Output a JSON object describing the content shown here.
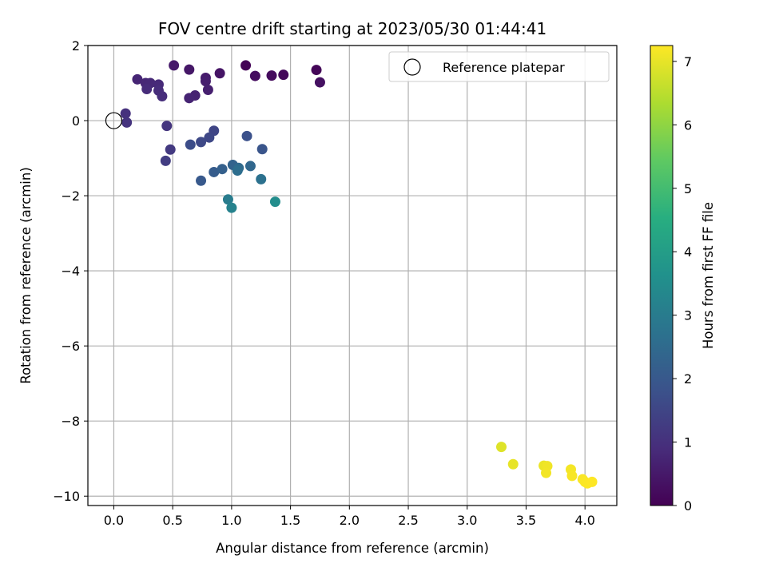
{
  "chart_data": {
    "type": "scatter",
    "title": "FOV centre drift starting at 2023/05/30 01:44:41",
    "xlabel": "Angular distance from reference (arcmin)",
    "ylabel": "Rotation from reference (arcmin)",
    "xlim": [
      -0.22,
      4.27
    ],
    "ylim": [
      -10.25,
      2.0
    ],
    "x_ticks": [
      0.0,
      0.5,
      1.0,
      1.5,
      2.0,
      2.5,
      3.0,
      3.5,
      4.0
    ],
    "x_tick_labels": [
      "0.0",
      "0.5",
      "1.0",
      "1.5",
      "2.0",
      "2.5",
      "3.0",
      "3.5",
      "4.0"
    ],
    "y_ticks": [
      2,
      0,
      -2,
      -4,
      -6,
      -8,
      -10
    ],
    "y_tick_labels": [
      "2",
      "0",
      "−2",
      "−4",
      "−6",
      "−8",
      "−10"
    ],
    "grid": true,
    "legend": {
      "placement": "top-right",
      "entries": [
        "Reference platepar"
      ]
    },
    "reference_point": {
      "x": 0.0,
      "y": 0.0
    },
    "colorbar": {
      "label": "Hours from first FF file",
      "colormap": "viridis",
      "range": [
        0,
        7.25
      ],
      "ticks": [
        0,
        1,
        2,
        3,
        4,
        5,
        6,
        7
      ],
      "tick_labels": [
        "0",
        "1",
        "2",
        "3",
        "4",
        "5",
        "6",
        "7"
      ]
    },
    "points": [
      {
        "x": 1.12,
        "y": 1.47,
        "c": 0.05
      },
      {
        "x": 1.72,
        "y": 1.35,
        "c": 0.1
      },
      {
        "x": 1.44,
        "y": 1.22,
        "c": 0.15
      },
      {
        "x": 1.34,
        "y": 1.2,
        "c": 0.2
      },
      {
        "x": 1.2,
        "y": 1.19,
        "c": 0.25
      },
      {
        "x": 1.75,
        "y": 1.02,
        "c": 0.3
      },
      {
        "x": 0.9,
        "y": 1.26,
        "c": 0.4
      },
      {
        "x": 0.64,
        "y": 1.36,
        "c": 0.45
      },
      {
        "x": 0.51,
        "y": 1.47,
        "c": 0.5
      },
      {
        "x": 0.78,
        "y": 1.14,
        "c": 0.55
      },
      {
        "x": 0.78,
        "y": 1.05,
        "c": 0.6
      },
      {
        "x": 0.8,
        "y": 0.82,
        "c": 0.62
      },
      {
        "x": 0.69,
        "y": 0.67,
        "c": 0.68
      },
      {
        "x": 0.64,
        "y": 0.6,
        "c": 0.72
      },
      {
        "x": 0.2,
        "y": 1.1,
        "c": 0.75
      },
      {
        "x": 0.27,
        "y": 1.0,
        "c": 0.8
      },
      {
        "x": 0.31,
        "y": 1.0,
        "c": 0.82
      },
      {
        "x": 0.38,
        "y": 0.96,
        "c": 0.85
      },
      {
        "x": 0.28,
        "y": 0.84,
        "c": 0.88
      },
      {
        "x": 0.38,
        "y": 0.8,
        "c": 0.9
      },
      {
        "x": 0.41,
        "y": 0.65,
        "c": 0.92
      },
      {
        "x": 0.1,
        "y": 0.19,
        "c": 1.0
      },
      {
        "x": 0.11,
        "y": -0.05,
        "c": 1.05
      },
      {
        "x": 0.45,
        "y": -0.14,
        "c": 1.1
      },
      {
        "x": 0.48,
        "y": -0.77,
        "c": 1.2
      },
      {
        "x": 0.44,
        "y": -1.07,
        "c": 1.3
      },
      {
        "x": 0.85,
        "y": -0.27,
        "c": 1.5
      },
      {
        "x": 0.81,
        "y": -0.45,
        "c": 1.55
      },
      {
        "x": 0.74,
        "y": -0.57,
        "c": 1.6
      },
      {
        "x": 0.65,
        "y": -0.64,
        "c": 1.7
      },
      {
        "x": 1.13,
        "y": -0.41,
        "c": 1.8
      },
      {
        "x": 1.26,
        "y": -0.76,
        "c": 1.9
      },
      {
        "x": 0.74,
        "y": -1.6,
        "c": 2.0
      },
      {
        "x": 0.85,
        "y": -1.37,
        "c": 2.1
      },
      {
        "x": 0.92,
        "y": -1.29,
        "c": 2.2
      },
      {
        "x": 1.01,
        "y": -1.18,
        "c": 2.3
      },
      {
        "x": 1.16,
        "y": -1.21,
        "c": 2.4
      },
      {
        "x": 1.06,
        "y": -1.26,
        "c": 2.5
      },
      {
        "x": 1.05,
        "y": -1.33,
        "c": 2.6
      },
      {
        "x": 1.25,
        "y": -1.56,
        "c": 2.7
      },
      {
        "x": 0.97,
        "y": -2.1,
        "c": 3.0
      },
      {
        "x": 1.0,
        "y": -2.32,
        "c": 3.2
      },
      {
        "x": 1.37,
        "y": -2.16,
        "c": 3.5
      },
      {
        "x": 3.29,
        "y": -8.69,
        "c": 6.9
      },
      {
        "x": 3.39,
        "y": -9.15,
        "c": 7.0
      },
      {
        "x": 3.65,
        "y": -9.19,
        "c": 7.05
      },
      {
        "x": 3.68,
        "y": -9.2,
        "c": 7.1
      },
      {
        "x": 3.67,
        "y": -9.38,
        "c": 7.12
      },
      {
        "x": 3.88,
        "y": -9.29,
        "c": 7.15
      },
      {
        "x": 3.89,
        "y": -9.46,
        "c": 7.18
      },
      {
        "x": 3.98,
        "y": -9.55,
        "c": 7.2
      },
      {
        "x": 4.0,
        "y": -9.62,
        "c": 7.22
      },
      {
        "x": 4.02,
        "y": -9.66,
        "c": 7.23
      },
      {
        "x": 4.06,
        "y": -9.62,
        "c": 7.25
      }
    ]
  }
}
